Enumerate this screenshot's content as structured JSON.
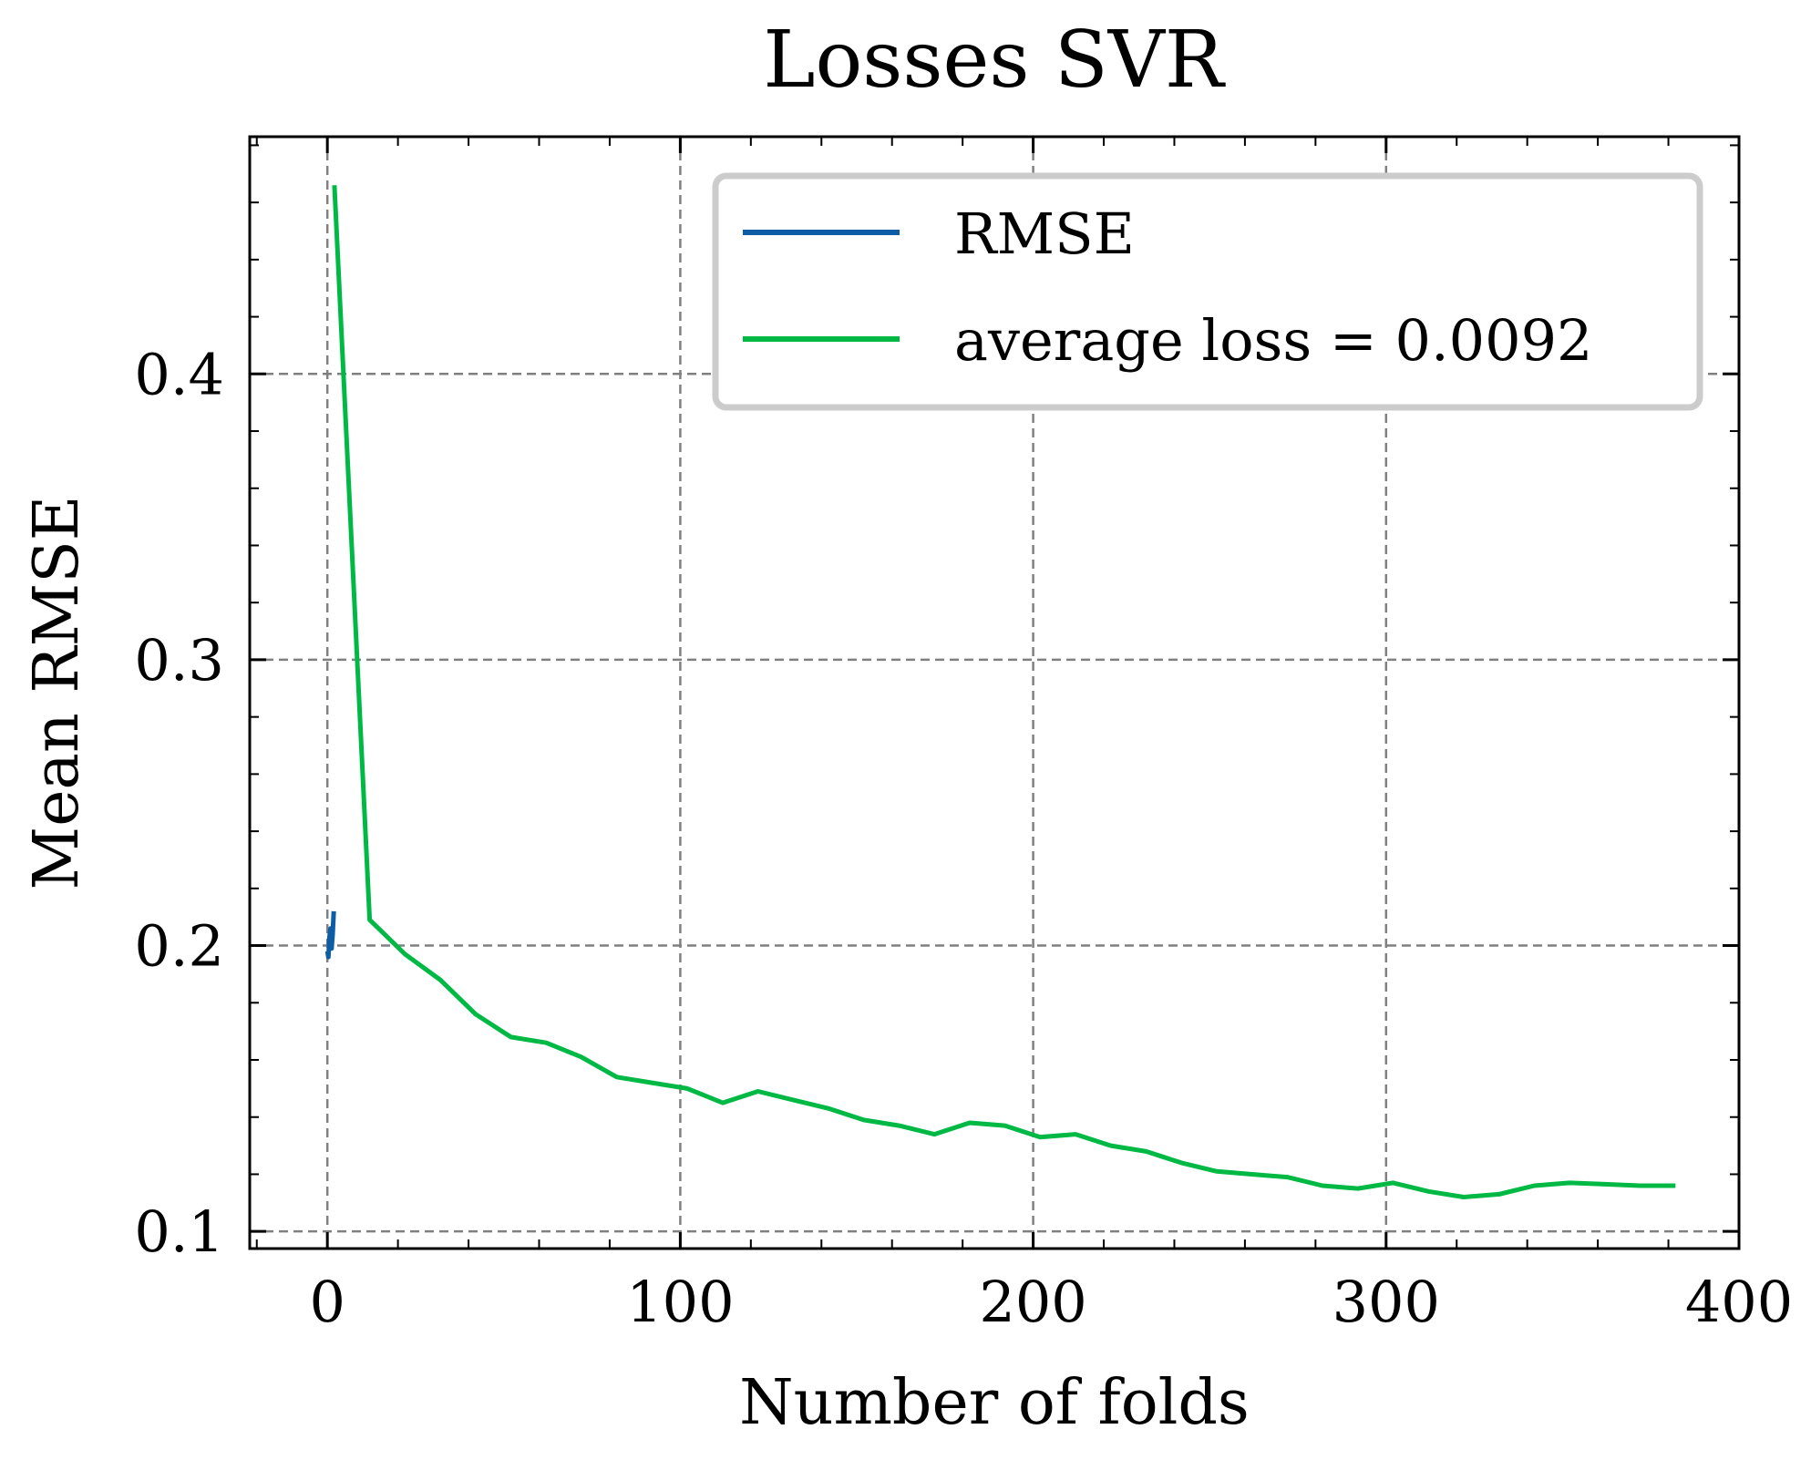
{
  "chart_data": {
    "type": "line",
    "title": "Losses SVR",
    "xlabel": "Number of folds",
    "ylabel": "Mean RMSE",
    "xlim": [
      -22,
      400
    ],
    "ylim": [
      0.094,
      0.483
    ],
    "xticks": [
      0,
      100,
      200,
      300,
      400
    ],
    "xtick_labels": [
      "0",
      "100",
      "200",
      "300",
      "400"
    ],
    "yticks": [
      0.1,
      0.2,
      0.3,
      0.4
    ],
    "ytick_labels": [
      "0.1",
      "0.2",
      "0.3",
      "0.4"
    ],
    "x_minor_step": 20,
    "y_minor_step": 0.02,
    "grid": true,
    "legend_position": "top-right",
    "series": [
      {
        "name": "RMSE",
        "color": "#0C5DA5",
        "x": [
          0,
          0.3,
          0.6,
          0.9,
          1.2,
          1.5,
          1.8
        ],
        "y": [
          0.198,
          0.196,
          0.203,
          0.206,
          0.199,
          0.204,
          0.212
        ]
      },
      {
        "name": "average loss = 0.0092",
        "color": "#00B945",
        "x": [
          2,
          12,
          22,
          32,
          42,
          52,
          62,
          72,
          82,
          92,
          102,
          112,
          122,
          132,
          142,
          152,
          162,
          172,
          182,
          192,
          202,
          212,
          222,
          232,
          242,
          252,
          262,
          272,
          282,
          292,
          302,
          312,
          322,
          332,
          342,
          352,
          362,
          372,
          382
        ],
        "y": [
          0.466,
          0.209,
          0.197,
          0.188,
          0.176,
          0.168,
          0.166,
          0.161,
          0.154,
          0.152,
          0.15,
          0.145,
          0.149,
          0.146,
          0.143,
          0.139,
          0.137,
          0.134,
          0.138,
          0.137,
          0.133,
          0.134,
          0.13,
          0.128,
          0.124,
          0.121,
          0.12,
          0.119,
          0.116,
          0.115,
          0.117,
          0.114,
          0.112,
          0.113,
          0.116,
          0.117,
          0.1165,
          0.116,
          0.116
        ]
      }
    ]
  }
}
